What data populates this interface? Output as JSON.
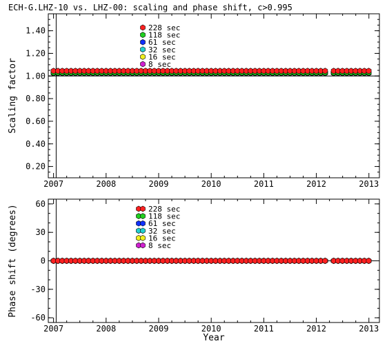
{
  "title": "ECH-G.LHZ-10 vs. LHZ-00: scaling and phase shift, c>0.995",
  "colors": {
    "228": "#ff2020",
    "118": "#20d020",
    "61": "#1030ff",
    "32": "#20d0d0",
    "16": "#f0f020",
    "8": "#d020d0",
    "axis": "#000000"
  },
  "chart_data": [
    {
      "type": "scatter",
      "ylabel": "Scaling factor",
      "xlabel": "",
      "xlim": [
        2006.9,
        2013.2
      ],
      "ylim": [
        0.1,
        1.55
      ],
      "xticks": [
        "2007",
        "2008",
        "2009",
        "2010",
        "2011",
        "2012",
        "2013"
      ],
      "yticks": [
        "0.20",
        "0.40",
        "0.60",
        "0.80",
        "1.00",
        "1.20",
        "1.40"
      ],
      "reference_line": 1.0,
      "legend_placement": "top-center",
      "series": [
        {
          "name": "228 sec",
          "color_key": "228",
          "segments": [
            [
              2007.0,
              2012.17,
              1.045
            ],
            [
              2012.33,
              2013.0,
              1.045
            ]
          ]
        },
        {
          "name": "118 sec",
          "color_key": "118",
          "segments": [
            [
              2007.0,
              2012.17,
              1.03
            ],
            [
              2012.33,
              2013.0,
              1.03
            ]
          ]
        },
        {
          "name": "61 sec",
          "color_key": "61",
          "segments": [
            [
              2007.0,
              2012.17,
              1.028
            ],
            [
              2012.33,
              2013.0,
              1.028
            ]
          ]
        },
        {
          "name": "32 sec",
          "color_key": "32",
          "segments": [
            [
              2007.0,
              2012.17,
              1.025
            ],
            [
              2012.33,
              2013.0,
              1.025
            ]
          ]
        },
        {
          "name": "16 sec",
          "color_key": "16",
          "segments": [
            [
              2007.0,
              2012.17,
              1.03
            ],
            [
              2012.33,
              2013.0,
              1.03
            ]
          ]
        },
        {
          "name": "8 sec",
          "color_key": "8",
          "segments": [
            [
              2007.0,
              2012.17,
              1.03
            ],
            [
              2012.33,
              2013.0,
              1.03
            ]
          ]
        }
      ]
    },
    {
      "type": "scatter",
      "ylabel": "Phase shift (degrees)",
      "xlabel": "Year",
      "xlim": [
        2006.9,
        2013.2
      ],
      "ylim": [
        -65,
        65
      ],
      "xticks": [
        "2007",
        "2008",
        "2009",
        "2010",
        "2011",
        "2012",
        "2013"
      ],
      "yticks": [
        "-60",
        "-30",
        "0",
        "30",
        "60"
      ],
      "reference_line": 0,
      "legend_placement": "top-center",
      "series": [
        {
          "name": "228 sec",
          "color_key": "228",
          "segments": [
            [
              2007.0,
              2012.17,
              0
            ],
            [
              2012.33,
              2013.0,
              0
            ]
          ]
        },
        {
          "name": "118 sec",
          "color_key": "118",
          "segments": [
            [
              2007.0,
              2012.17,
              0
            ],
            [
              2012.33,
              2013.0,
              0
            ]
          ]
        },
        {
          "name": "61 sec",
          "color_key": "61",
          "segments": [
            [
              2007.0,
              2012.17,
              0
            ],
            [
              2012.33,
              2013.0,
              0
            ]
          ]
        },
        {
          "name": "32 sec",
          "color_key": "32",
          "segments": [
            [
              2007.0,
              2012.17,
              0
            ],
            [
              2012.33,
              2013.0,
              0
            ]
          ]
        },
        {
          "name": "16 sec",
          "color_key": "16",
          "segments": [
            [
              2007.0,
              2012.17,
              0
            ],
            [
              2012.33,
              2013.0,
              0
            ]
          ]
        },
        {
          "name": "8 sec",
          "color_key": "8",
          "segments": [
            [
              2007.0,
              2012.17,
              0
            ],
            [
              2012.33,
              2013.0,
              0
            ]
          ]
        }
      ]
    }
  ]
}
